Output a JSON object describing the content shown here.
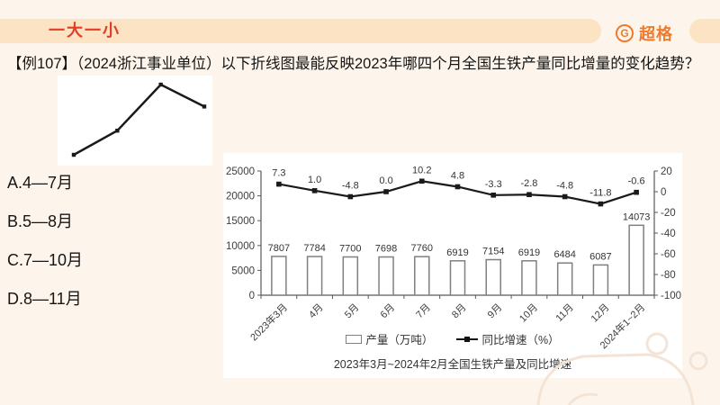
{
  "header": {
    "ribbon_label": "一大一小",
    "logo_icon": "G",
    "logo_text": "超格"
  },
  "question": {
    "text": "【例107】（2024浙江事业单位）以下折线图最能反映2023年哪四个月全国生铁产量同比增量的变化趋势？"
  },
  "options": [
    "A.4—7月",
    "B.5—8月",
    "C.7—10月",
    "D.8—11月"
  ],
  "chart_data": [
    {
      "type": "bar+line",
      "title": "2023年3月~2024年2月全国生铁产量及同比增速",
      "categories": [
        "2023年3月",
        "4月",
        "5月",
        "6月",
        "7月",
        "8月",
        "9月",
        "10月",
        "11月",
        "12月",
        "2024年1~2月"
      ],
      "series": [
        {
          "name": "产量（万吨）",
          "type": "bar",
          "axis": "left",
          "values": [
            7807,
            7784,
            7700,
            7698,
            7760,
            6919,
            7154,
            6919,
            6484,
            6087,
            14073
          ]
        },
        {
          "name": "同比增速（%）",
          "type": "line",
          "axis": "right",
          "values": [
            7.3,
            1.0,
            -4.8,
            0.0,
            10.2,
            4.8,
            -3.3,
            -2.8,
            -4.8,
            -11.8,
            -0.6
          ]
        }
      ],
      "left_axis": {
        "min": 0,
        "max": 25000,
        "step": 5000
      },
      "right_axis": {
        "min": -100,
        "max": 20,
        "step": 20
      },
      "legend_position": "bottom",
      "grid": false
    },
    {
      "type": "line",
      "title": "",
      "description": "unlabeled trend sketch: rises to a peak at the 3rd point then declines",
      "x": [
        1,
        2,
        3,
        4
      ],
      "values": [
        1.0,
        2.1,
        4.2,
        3.2
      ]
    }
  ],
  "colors": {
    "background": "#fdf5eb",
    "panel": "#ffffff",
    "ribbon": "#fbe3c3",
    "ribbon_text": "#e23d25",
    "logo": "#f07a2c",
    "axis": "#595959",
    "label": "#3d3d3d",
    "bar_stroke": "#808080",
    "line": "#1a1a1a",
    "mascot": "#f3e4d6"
  }
}
